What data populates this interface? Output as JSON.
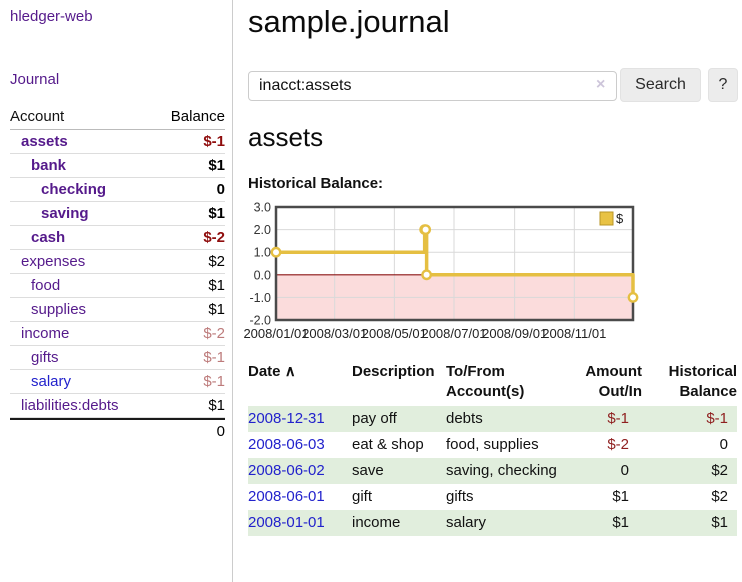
{
  "app": {
    "brand": "hledger-web",
    "nav_journal": "Journal"
  },
  "sidebar": {
    "header": {
      "account": "Account",
      "balance": "Balance"
    },
    "accounts": [
      {
        "name": "assets",
        "balance": "$-1",
        "depth": 1,
        "bold": true,
        "balance_style": "neg-strong",
        "link_color": "purple"
      },
      {
        "name": "bank",
        "balance": "$1",
        "depth": 2,
        "bold": true,
        "balance_style": "bold",
        "link_color": "purple"
      },
      {
        "name": "checking",
        "balance": "0",
        "depth": 3,
        "bold": true,
        "balance_style": "bold",
        "link_color": "purple"
      },
      {
        "name": "saving",
        "balance": "$1",
        "depth": 3,
        "bold": true,
        "balance_style": "bold",
        "link_color": "purple"
      },
      {
        "name": "cash",
        "balance": "$-2",
        "depth": 2,
        "bold": true,
        "balance_style": "neg-strong",
        "link_color": "purple"
      },
      {
        "name": "expenses",
        "balance": "$2",
        "depth": 1,
        "bold": false,
        "balance_style": "plain",
        "link_color": "purple"
      },
      {
        "name": "food",
        "balance": "$1",
        "depth": 2,
        "bold": false,
        "balance_style": "plain",
        "link_color": "purple"
      },
      {
        "name": "supplies",
        "balance": "$1",
        "depth": 2,
        "bold": false,
        "balance_style": "plain",
        "link_color": "purple"
      },
      {
        "name": "income",
        "balance": "$-2",
        "depth": 1,
        "bold": false,
        "balance_style": "neg-soft",
        "link_color": "purple"
      },
      {
        "name": "gifts",
        "balance": "$-1",
        "depth": 2,
        "bold": false,
        "balance_style": "neg-soft",
        "link_color": "purple"
      },
      {
        "name": "salary",
        "balance": "$-1",
        "depth": 2,
        "bold": false,
        "balance_style": "neg-soft",
        "link_color": "blue"
      },
      {
        "name": "liabilities:debts",
        "balance": "$1",
        "depth": 1,
        "bold": false,
        "balance_style": "plain",
        "link_color": "purple"
      }
    ],
    "total": "0"
  },
  "header": {
    "title": "sample.journal"
  },
  "search": {
    "value": "inacct:assets",
    "clear_icon": "×",
    "button_label": "Search",
    "help_label": "?"
  },
  "main": {
    "account_title": "assets",
    "chart_label": "Historical Balance:"
  },
  "chart_data": {
    "type": "line",
    "step": true,
    "title": "Historical Balance:",
    "x_start": "2008-01-01",
    "x_end": "2008-12-31",
    "series": [
      {
        "name": "$",
        "points": [
          {
            "date": "2008-01-01",
            "value": 1
          },
          {
            "date": "2008-06-01",
            "value": 2
          },
          {
            "date": "2008-06-02",
            "value": 2
          },
          {
            "date": "2008-06-03",
            "value": 0
          },
          {
            "date": "2008-12-31",
            "value": -1
          }
        ]
      }
    ],
    "ylim": [
      -2,
      3
    ],
    "yticks": [
      3,
      2,
      1,
      0,
      -1,
      -2
    ],
    "ytick_labels": [
      "3.0",
      "2.0",
      "1.0",
      "0.0",
      "-1.0",
      "-2.0"
    ],
    "xtick_dates": [
      "2008-01-01",
      "2008-03-01",
      "2008-05-01",
      "2008-07-01",
      "2008-09-01",
      "2008-11-01"
    ],
    "xtick_labels": [
      "2008/01/01",
      "2008/03/01",
      "2008/05/01",
      "2008/07/01",
      "2008/09/01",
      "2008/11/01"
    ],
    "legend": {
      "label": "$",
      "position": "top-right"
    },
    "grid": true,
    "colors": {
      "line": "#e5bf42",
      "marker_fill": "#ffffff",
      "negative_region": "#fbdcdc",
      "zero_line": "#8b1414",
      "grid": "#d9d9d9",
      "border": "#4a4a4a",
      "legend_fill": "#e8c244",
      "legend_border": "#b89526"
    }
  },
  "register": {
    "columns": [
      "Date",
      "Description",
      "To/From Account(s)",
      "Amount Out/In",
      "Historical Balance"
    ],
    "sort_icon": "∧",
    "rows": [
      {
        "date": "2008-12-31",
        "description": "pay off",
        "accounts": "debts",
        "amount": "$-1",
        "balance": "$-1",
        "amount_neg": true,
        "balance_neg": true
      },
      {
        "date": "2008-06-03",
        "description": "eat & shop",
        "accounts": "food, supplies",
        "amount": "$-2",
        "balance": "0",
        "amount_neg": true,
        "balance_neg": false
      },
      {
        "date": "2008-06-02",
        "description": "save",
        "accounts": "saving, checking",
        "amount": "0",
        "balance": "$2",
        "amount_neg": false,
        "balance_neg": false
      },
      {
        "date": "2008-06-01",
        "description": "gift",
        "accounts": "gifts",
        "amount": "$1",
        "balance": "$2",
        "amount_neg": false,
        "balance_neg": false
      },
      {
        "date": "2008-01-01",
        "description": "income",
        "accounts": "salary",
        "amount": "$1",
        "balance": "$1",
        "amount_neg": false,
        "balance_neg": false
      }
    ]
  },
  "colors": {
    "accent_purple": "#551a8b",
    "link_blue": "#2222cc",
    "negative_red": "#8f1f1f",
    "negative_soft": "#bd7b7b",
    "row_stripe_green": "#e1eedd"
  }
}
